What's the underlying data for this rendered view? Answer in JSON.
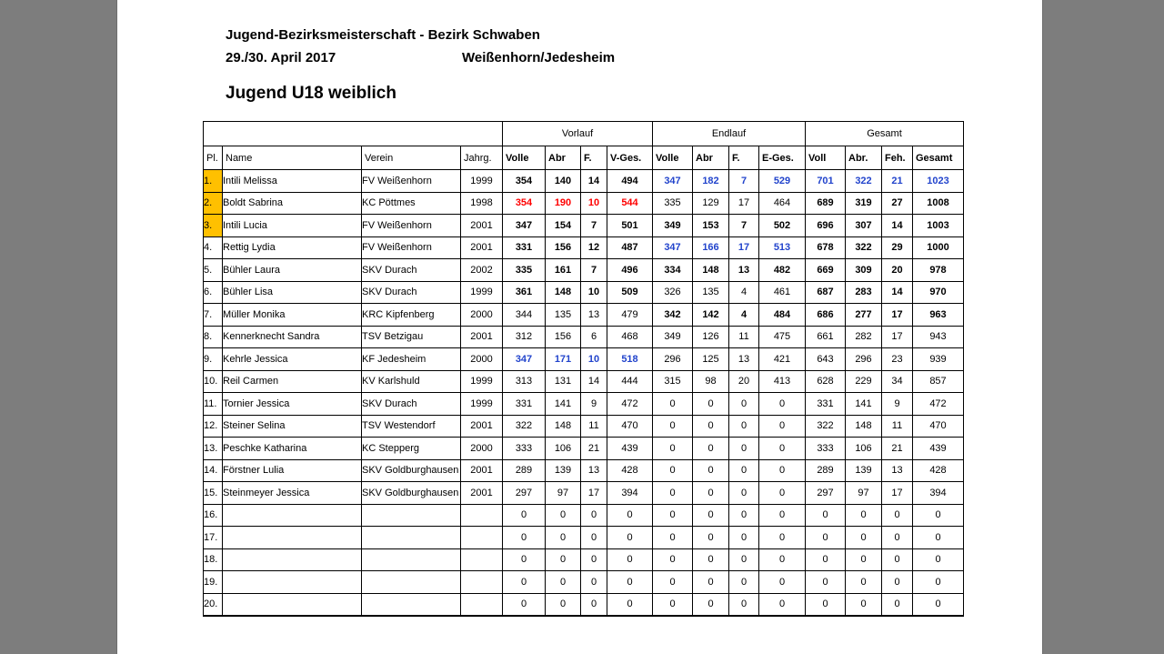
{
  "document": {
    "title": "Jugend-Bezirksmeisterschaft - Bezirk Schwaben",
    "date": "29./30. April 2017",
    "location": "Weißenhorn/Jedesheim",
    "category": "Jugend U18 weiblich"
  },
  "table": {
    "group_headers": [
      "Vorlauf",
      "Endlauf",
      "Gesamt"
    ],
    "columns": [
      "Pl.",
      "Name",
      "Verein",
      "Jahrg.",
      "Volle",
      "Abr",
      "F.",
      "V-Ges.",
      "Volle",
      "Abr",
      "F.",
      "E-Ges.",
      "Voll",
      "Abr.",
      "Feh.",
      "Gesamt"
    ],
    "rows": [
      {
        "pl": "1.",
        "pl_highlight": true,
        "name": "Intili Melissa",
        "verein": "FV Weißenhorn",
        "jahrg": "1999",
        "vorlauf": [
          "354",
          "140",
          "14",
          "494"
        ],
        "vorlauf_style": "bold",
        "endlauf": [
          "347",
          "182",
          "7",
          "529"
        ],
        "endlauf_style": "blue",
        "gesamt": [
          "701",
          "322",
          "21",
          "1023"
        ],
        "gesamt_style": "blue"
      },
      {
        "pl": "2.",
        "pl_highlight": true,
        "name": "Boldt Sabrina",
        "verein": "KC Pöttmes",
        "jahrg": "1998",
        "vorlauf": [
          "354",
          "190",
          "10",
          "544"
        ],
        "vorlauf_style": "red",
        "endlauf": [
          "335",
          "129",
          "17",
          "464"
        ],
        "endlauf_style": "normal",
        "gesamt": [
          "689",
          "319",
          "27",
          "1008"
        ],
        "gesamt_style": "bold"
      },
      {
        "pl": "3.",
        "pl_highlight": true,
        "name": "Intili Lucia",
        "verein": "FV Weißenhorn",
        "jahrg": "2001",
        "vorlauf": [
          "347",
          "154",
          "7",
          "501"
        ],
        "vorlauf_style": "bold",
        "endlauf": [
          "349",
          "153",
          "7",
          "502"
        ],
        "endlauf_style": "bold",
        "gesamt": [
          "696",
          "307",
          "14",
          "1003"
        ],
        "gesamt_style": "bold"
      },
      {
        "pl": "4.",
        "pl_highlight": false,
        "name": "Rettig Lydia",
        "verein": "FV Weißenhorn",
        "jahrg": "2001",
        "vorlauf": [
          "331",
          "156",
          "12",
          "487"
        ],
        "vorlauf_style": "bold",
        "endlauf": [
          "347",
          "166",
          "17",
          "513"
        ],
        "endlauf_style": "blue",
        "gesamt": [
          "678",
          "322",
          "29",
          "1000"
        ],
        "gesamt_style": "bold"
      },
      {
        "pl": "5.",
        "pl_highlight": false,
        "name": "Bühler Laura",
        "verein": "SKV Durach",
        "jahrg": "2002",
        "vorlauf": [
          "335",
          "161",
          "7",
          "496"
        ],
        "vorlauf_style": "bold",
        "endlauf": [
          "334",
          "148",
          "13",
          "482"
        ],
        "endlauf_style": "bold",
        "gesamt": [
          "669",
          "309",
          "20",
          "978"
        ],
        "gesamt_style": "bold"
      },
      {
        "pl": "6.",
        "pl_highlight": false,
        "name": "Bühler Lisa",
        "verein": "SKV Durach",
        "jahrg": "1999",
        "vorlauf": [
          "361",
          "148",
          "10",
          "509"
        ],
        "vorlauf_style": "bold",
        "endlauf": [
          "326",
          "135",
          "4",
          "461"
        ],
        "endlauf_style": "normal",
        "gesamt": [
          "687",
          "283",
          "14",
          "970"
        ],
        "gesamt_style": "bold"
      },
      {
        "pl": "7.",
        "pl_highlight": false,
        "name": "Müller Monika",
        "verein": "KRC Kipfenberg",
        "jahrg": "2000",
        "vorlauf": [
          "344",
          "135",
          "13",
          "479"
        ],
        "vorlauf_style": "normal",
        "endlauf": [
          "342",
          "142",
          "4",
          "484"
        ],
        "endlauf_style": "bold",
        "gesamt": [
          "686",
          "277",
          "17",
          "963"
        ],
        "gesamt_style": "bold"
      },
      {
        "pl": "8.",
        "pl_highlight": false,
        "name": "Kennerknecht Sandra",
        "verein": "TSV Betzigau",
        "jahrg": "2001",
        "vorlauf": [
          "312",
          "156",
          "6",
          "468"
        ],
        "vorlauf_style": "normal",
        "endlauf": [
          "349",
          "126",
          "11",
          "475"
        ],
        "endlauf_style": "normal",
        "gesamt": [
          "661",
          "282",
          "17",
          "943"
        ],
        "gesamt_style": "normal"
      },
      {
        "pl": "9.",
        "pl_highlight": false,
        "name": "Kehrle Jessica",
        "verein": "KF Jedesheim",
        "jahrg": "2000",
        "vorlauf": [
          "347",
          "171",
          "10",
          "518"
        ],
        "vorlauf_style": "blue",
        "endlauf": [
          "296",
          "125",
          "13",
          "421"
        ],
        "endlauf_style": "normal",
        "gesamt": [
          "643",
          "296",
          "23",
          "939"
        ],
        "gesamt_style": "normal"
      },
      {
        "pl": "10.",
        "pl_highlight": false,
        "name": "Reil Carmen",
        "verein": "KV Karlshuld",
        "jahrg": "1999",
        "vorlauf": [
          "313",
          "131",
          "14",
          "444"
        ],
        "vorlauf_style": "normal",
        "endlauf": [
          "315",
          "98",
          "20",
          "413"
        ],
        "endlauf_style": "normal",
        "gesamt": [
          "628",
          "229",
          "34",
          "857"
        ],
        "gesamt_style": "normal"
      },
      {
        "pl": "11.",
        "pl_highlight": false,
        "name": "Tornier Jessica",
        "verein": "SKV Durach",
        "jahrg": "1999",
        "vorlauf": [
          "331",
          "141",
          "9",
          "472"
        ],
        "vorlauf_style": "normal",
        "endlauf": [
          "0",
          "0",
          "0",
          "0"
        ],
        "endlauf_style": "normal",
        "gesamt": [
          "331",
          "141",
          "9",
          "472"
        ],
        "gesamt_style": "normal"
      },
      {
        "pl": "12.",
        "pl_highlight": false,
        "name": "Steiner Selina",
        "verein": "TSV Westendorf",
        "jahrg": "2001",
        "vorlauf": [
          "322",
          "148",
          "11",
          "470"
        ],
        "vorlauf_style": "normal",
        "endlauf": [
          "0",
          "0",
          "0",
          "0"
        ],
        "endlauf_style": "normal",
        "gesamt": [
          "322",
          "148",
          "11",
          "470"
        ],
        "gesamt_style": "normal"
      },
      {
        "pl": "13.",
        "pl_highlight": false,
        "name": "Peschke Katharina",
        "verein": "KC Stepperg",
        "jahrg": "2000",
        "vorlauf": [
          "333",
          "106",
          "21",
          "439"
        ],
        "vorlauf_style": "normal",
        "endlauf": [
          "0",
          "0",
          "0",
          "0"
        ],
        "endlauf_style": "normal",
        "gesamt": [
          "333",
          "106",
          "21",
          "439"
        ],
        "gesamt_style": "normal"
      },
      {
        "pl": "14.",
        "pl_highlight": false,
        "name": "Förstner Lulia",
        "verein": "SKV Goldburghausen",
        "jahrg": "2001",
        "vorlauf": [
          "289",
          "139",
          "13",
          "428"
        ],
        "vorlauf_style": "normal",
        "endlauf": [
          "0",
          "0",
          "0",
          "0"
        ],
        "endlauf_style": "normal",
        "gesamt": [
          "289",
          "139",
          "13",
          "428"
        ],
        "gesamt_style": "normal"
      },
      {
        "pl": "15.",
        "pl_highlight": false,
        "name": "Steinmeyer Jessica",
        "verein": "SKV Goldburghausen",
        "jahrg": "2001",
        "vorlauf": [
          "297",
          "97",
          "17",
          "394"
        ],
        "vorlauf_style": "normal",
        "endlauf": [
          "0",
          "0",
          "0",
          "0"
        ],
        "endlauf_style": "normal",
        "gesamt": [
          "297",
          "97",
          "17",
          "394"
        ],
        "gesamt_style": "normal"
      },
      {
        "pl": "16.",
        "pl_highlight": false,
        "name": "",
        "verein": "",
        "jahrg": "",
        "vorlauf": [
          "0",
          "0",
          "0",
          "0"
        ],
        "vorlauf_style": "normal",
        "endlauf": [
          "0",
          "0",
          "0",
          "0"
        ],
        "endlauf_style": "normal",
        "gesamt": [
          "0",
          "0",
          "0",
          "0"
        ],
        "gesamt_style": "normal"
      },
      {
        "pl": "17.",
        "pl_highlight": false,
        "name": "",
        "verein": "",
        "jahrg": "",
        "vorlauf": [
          "0",
          "0",
          "0",
          "0"
        ],
        "vorlauf_style": "normal",
        "endlauf": [
          "0",
          "0",
          "0",
          "0"
        ],
        "endlauf_style": "normal",
        "gesamt": [
          "0",
          "0",
          "0",
          "0"
        ],
        "gesamt_style": "normal"
      },
      {
        "pl": "18.",
        "pl_highlight": false,
        "name": "",
        "verein": "",
        "jahrg": "",
        "vorlauf": [
          "0",
          "0",
          "0",
          "0"
        ],
        "vorlauf_style": "normal",
        "endlauf": [
          "0",
          "0",
          "0",
          "0"
        ],
        "endlauf_style": "normal",
        "gesamt": [
          "0",
          "0",
          "0",
          "0"
        ],
        "gesamt_style": "normal"
      },
      {
        "pl": "19.",
        "pl_highlight": false,
        "name": "",
        "verein": "",
        "jahrg": "",
        "vorlauf": [
          "0",
          "0",
          "0",
          "0"
        ],
        "vorlauf_style": "normal",
        "endlauf": [
          "0",
          "0",
          "0",
          "0"
        ],
        "endlauf_style": "normal",
        "gesamt": [
          "0",
          "0",
          "0",
          "0"
        ],
        "gesamt_style": "normal"
      },
      {
        "pl": "20.",
        "pl_highlight": false,
        "name": "",
        "verein": "",
        "jahrg": "",
        "vorlauf": [
          "0",
          "0",
          "0",
          "0"
        ],
        "vorlauf_style": "normal",
        "endlauf": [
          "0",
          "0",
          "0",
          "0"
        ],
        "endlauf_style": "normal",
        "gesamt": [
          "0",
          "0",
          "0",
          "0"
        ],
        "gesamt_style": "normal"
      }
    ]
  },
  "colors": {
    "rank_highlight": "#ffc000",
    "best_result_blue": "#2244cc",
    "disqualified_red": "#ff0000",
    "page_background": "#ffffff",
    "viewer_background": "#7d7d7d"
  }
}
